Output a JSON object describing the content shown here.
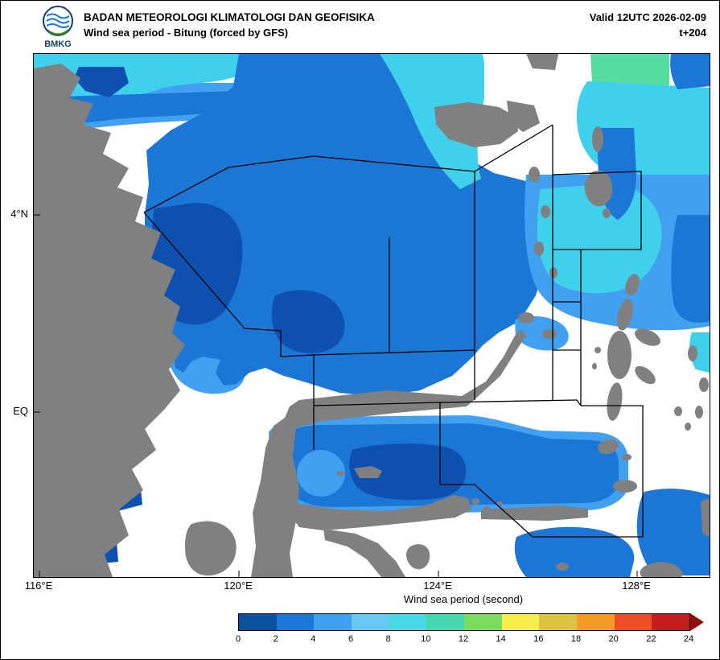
{
  "header": {
    "agency": "BADAN METEOROLOGI KLIMATOLOGI DAN GEOFISIKA",
    "product": "Wind sea period - Bitung (forced by GFS)",
    "valid": "Valid 12UTC 2026-02-09",
    "tstep": "t+204",
    "logo_text": "BMKG"
  },
  "map": {
    "y_axis": [
      {
        "label": "4°N"
      },
      {
        "label": "EQ"
      }
    ],
    "x_axis": [
      {
        "label": "116°E"
      },
      {
        "label": "120°E"
      },
      {
        "label": "124°E"
      },
      {
        "label": "128°E"
      }
    ]
  },
  "colorbar": {
    "title": "Wind sea period (second)",
    "ticks": [
      "0",
      "2",
      "4",
      "6",
      "8",
      "10",
      "12",
      "14",
      "16",
      "18",
      "20",
      "22",
      "24"
    ],
    "colors": [
      "#08519c",
      "#1b76d6",
      "#41a0f0",
      "#67c8f0",
      "#49d8e8",
      "#45d8ae",
      "#79dc5a",
      "#f5ee4a",
      "#d9c340",
      "#f59b28",
      "#ef4e24",
      "#c41d1d"
    ],
    "arrow_color": "#8b0f0f"
  },
  "palette": {
    "land": "#808080",
    "sea_white": "#ffffff",
    "dark_blue": "#0d50b0",
    "medium_blue": "#1b76d6",
    "light_blue": "#41a0f0",
    "cyan": "#3fd1ec",
    "green": "#55dca2",
    "boundary": "#000000"
  }
}
